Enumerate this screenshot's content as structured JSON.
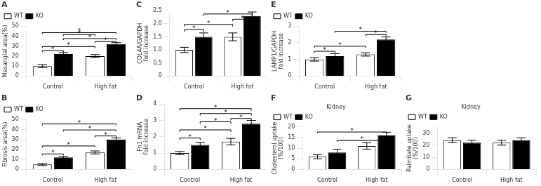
{
  "chart_data": [
    {
      "type": "bar",
      "title": "A",
      "ylabel": "Mesangial area(%)",
      "categories": [
        "Control",
        "High fat"
      ],
      "series": [
        {
          "name": "WT",
          "color": "white",
          "values": [
            10,
            20
          ],
          "errors": [
            1.5,
            1.5
          ]
        },
        {
          "name": "KO",
          "color": "black",
          "values": [
            22,
            32
          ],
          "errors": [
            1.5,
            1.5
          ]
        }
      ],
      "ylim": [
        0,
        50
      ],
      "yticks": [
        0,
        10,
        20,
        30,
        40,
        50
      ],
      "grid": false,
      "legend": "upper left",
      "annotations": [
        {
          "text": "*",
          "y": 24,
          "from": [
            "WT",
            "Control"
          ],
          "to": [
            "KO",
            "Control"
          ]
        },
        {
          "text": "*",
          "y": 33,
          "from": [
            "WT",
            "High fat"
          ],
          "to": [
            "KO",
            "High fat"
          ]
        },
        {
          "text": "*",
          "y": 28,
          "from": [
            "WT",
            "Control"
          ],
          "to": [
            "WT",
            "High fat"
          ]
        },
        {
          "text": "*",
          "y": 36,
          "from": [
            "KO",
            "Control"
          ],
          "to": [
            "KO",
            "High fat"
          ]
        },
        {
          "text": "*",
          "y": 42,
          "from": [
            "WT",
            "Control"
          ],
          "to": [
            "KO",
            "High fat"
          ]
        },
        {
          "text": "*",
          "y": 40,
          "from": [
            "KO",
            "Control"
          ],
          "to": [
            "WT",
            "High fat"
          ]
        }
      ]
    },
    {
      "type": "bar",
      "title": "B",
      "ylabel": "Fibrosis area(%)",
      "categories": [
        "Control",
        "High fat"
      ],
      "series": [
        {
          "name": "WT",
          "color": "white",
          "values": [
            5,
            17
          ],
          "errors": [
            1,
            1.5
          ]
        },
        {
          "name": "KO",
          "color": "black",
          "values": [
            12,
            30
          ],
          "errors": [
            1,
            1.5
          ]
        }
      ],
      "ylim": [
        0,
        50
      ],
      "yticks": [
        0,
        10,
        20,
        30,
        40,
        50
      ],
      "grid": false,
      "legend": "upper left",
      "annotations": [
        {
          "text": "*",
          "y": 14,
          "from": [
            "WT",
            "Control"
          ],
          "to": [
            "KO",
            "Control"
          ]
        },
        {
          "text": "*",
          "y": 32,
          "from": [
            "WT",
            "High fat"
          ],
          "to": [
            "KO",
            "High fat"
          ]
        },
        {
          "text": "*",
          "y": 22,
          "from": [
            "WT",
            "Control"
          ],
          "to": [
            "WT",
            "High fat"
          ]
        },
        {
          "text": "*",
          "y": 38,
          "from": [
            "KO",
            "Control"
          ],
          "to": [
            "KO",
            "High fat"
          ]
        },
        {
          "text": "*",
          "y": 44,
          "from": [
            "WT",
            "Control"
          ],
          "to": [
            "KO",
            "High fat"
          ]
        }
      ]
    },
    {
      "type": "bar",
      "title": "C",
      "ylabel": "COL4A/GAPDH\nfold increase",
      "categories": [
        "Control",
        "High fat"
      ],
      "series": [
        {
          "name": "WT",
          "color": "white",
          "values": [
            1.0,
            1.5
          ],
          "errors": [
            0.1,
            0.15
          ]
        },
        {
          "name": "KO",
          "color": "black",
          "values": [
            1.5,
            2.3
          ],
          "errors": [
            0.15,
            0.15
          ]
        }
      ],
      "ylim": [
        0,
        2.5
      ],
      "yticks": [
        0,
        0.5,
        {
          "value": 1.0,
          "label": "1.0"
        },
        1.5,
        {
          "value": 2.0,
          "label": "2.0"
        },
        2.5
      ],
      "grid": false,
      "annotations": [
        {
          "text": "*",
          "y": 1.7,
          "from": [
            "WT",
            "Control"
          ],
          "to": [
            "KO",
            "Control"
          ]
        },
        {
          "text": "*",
          "y": 2.1,
          "from": [
            "WT",
            "High fat"
          ],
          "to": [
            "KO",
            "High fat"
          ]
        },
        {
          "text": "*",
          "y": 1.9,
          "from": [
            "WT",
            "Control"
          ],
          "to": [
            "WT",
            "High fat"
          ]
        },
        {
          "text": "*",
          "y": 2.3,
          "from": [
            "KO",
            "Control"
          ],
          "to": [
            "KO",
            "High fat"
          ]
        }
      ]
    },
    {
      "type": "bar",
      "title": "D",
      "ylabel": "Fn1 mRNA\nfold increase",
      "categories": [
        "Control",
        "High fat"
      ],
      "series": [
        {
          "name": "WT",
          "color": "white",
          "values": [
            1.0,
            1.7
          ],
          "errors": [
            0.1,
            0.2
          ]
        },
        {
          "name": "KO",
          "color": "black",
          "values": [
            1.5,
            2.8
          ],
          "errors": [
            0.15,
            0.2
          ]
        }
      ],
      "ylim": [
        0,
        4
      ],
      "yticks": [
        0,
        1,
        2,
        3,
        4
      ],
      "grid": false,
      "annotations": [
        {
          "text": "*",
          "y": 1.8,
          "from": [
            "WT",
            "Control"
          ],
          "to": [
            "KO",
            "Control"
          ]
        },
        {
          "text": "*",
          "y": 3.0,
          "from": [
            "WT",
            "High fat"
          ],
          "to": [
            "KO",
            "High fat"
          ]
        },
        {
          "text": "*",
          "y": 2.3,
          "from": [
            "WT",
            "Control"
          ],
          "to": [
            "WT",
            "High fat"
          ]
        },
        {
          "text": "*",
          "y": 3.3,
          "from": [
            "KO",
            "Control"
          ],
          "to": [
            "KO",
            "High fat"
          ]
        },
        {
          "text": "*",
          "y": 3.6,
          "from": [
            "WT",
            "Control"
          ],
          "to": [
            "KO",
            "High fat"
          ]
        },
        {
          "text": "*",
          "y": 2.8,
          "from": [
            "KO",
            "Control"
          ],
          "to": [
            "WT",
            "High fat"
          ]
        }
      ]
    },
    {
      "type": "bar",
      "title": "E",
      "ylabel": "LAMP1/GAPDH\nfold increase",
      "categories": [
        "Control",
        "High fat"
      ],
      "series": [
        {
          "name": "WT",
          "color": "white",
          "values": [
            1.0,
            1.3
          ],
          "errors": [
            0.1,
            0.1
          ]
        },
        {
          "name": "KO",
          "color": "black",
          "values": [
            1.2,
            2.2
          ],
          "errors": [
            0.15,
            0.15
          ]
        }
      ],
      "ylim": [
        0,
        3
      ],
      "yticks": [
        0,
        1,
        2,
        3
      ],
      "grid": false,
      "legend": "upper left",
      "annotations": [
        {
          "text": "*",
          "y": 1.4,
          "from": [
            "WT",
            "Control"
          ],
          "to": [
            "KO",
            "Control"
          ]
        },
        {
          "text": "*",
          "y": 2.4,
          "from": [
            "WT",
            "High fat"
          ],
          "to": [
            "KO",
            "High fat"
          ]
        },
        {
          "text": "*",
          "y": 1.7,
          "from": [
            "WT",
            "Control"
          ],
          "to": [
            "WT",
            "High fat"
          ]
        },
        {
          "text": "*",
          "y": 2.6,
          "from": [
            "KO",
            "Control"
          ],
          "to": [
            "KO",
            "High fat"
          ]
        }
      ]
    },
    {
      "type": "bar",
      "title": "F",
      "subtitle": "Kidney",
      "ylabel": "Cholesterol uptake\n(%/100)",
      "categories": [
        "Control",
        "High fat"
      ],
      "series": [
        {
          "name": "WT",
          "color": "white",
          "values": [
            6,
            11
          ],
          "errors": [
            1.0,
            1.5
          ]
        },
        {
          "name": "KO",
          "color": "black",
          "values": [
            8,
            16
          ],
          "errors": [
            1.5,
            1.5
          ]
        }
      ],
      "ylim": [
        0,
        20
      ],
      "yticks": [
        0,
        5,
        10,
        15,
        20
      ],
      "grid": false,
      "legend": "upper left",
      "annotations": [
        {
          "text": "*",
          "y": 13,
          "from": [
            "KO",
            "Control"
          ],
          "to": [
            "KO",
            "High fat"
          ]
        },
        {
          "text": "*",
          "y": 17,
          "from": [
            "WT",
            "Control"
          ],
          "to": [
            "KO",
            "High fat"
          ]
        }
      ]
    },
    {
      "type": "bar",
      "title": "G",
      "subtitle": "Kidney",
      "ylabel": "Palmitate uptake\n(%/100)",
      "categories": [
        "Control",
        "High fat"
      ],
      "series": [
        {
          "name": "WT",
          "color": "white",
          "values": [
            24,
            22
          ],
          "errors": [
            2,
            2
          ]
        },
        {
          "name": "KO",
          "color": "black",
          "values": [
            22,
            24
          ],
          "errors": [
            2,
            2
          ]
        }
      ],
      "ylim": [
        0,
        35
      ],
      "yticks": [
        0,
        10,
        20,
        30
      ],
      "grid": false,
      "legend": "upper left"
    }
  ]
}
